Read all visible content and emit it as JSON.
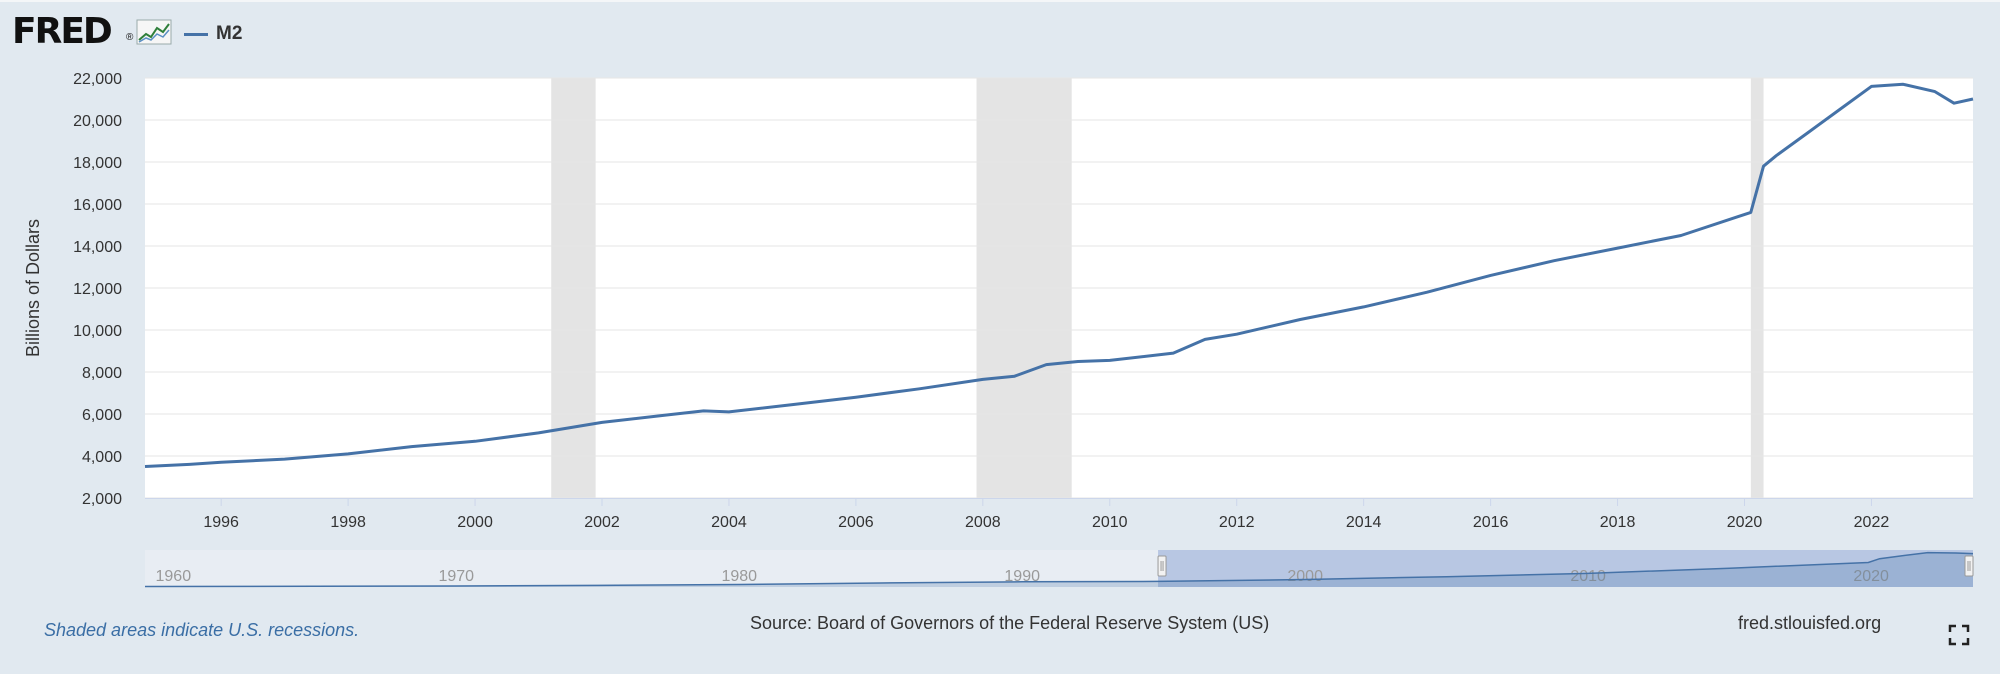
{
  "header": {
    "logo_text": "FRED",
    "logo_reg": "®",
    "legend_label": "M2",
    "series_color": "#4572a7"
  },
  "footer": {
    "recession_note": "Shaded areas indicate U.S. recessions.",
    "source": "Source: Board of Governors of the Federal Reserve System (US)",
    "site": "fred.stlouisfed.org",
    "fullscreen_icon": "fullscreen-icon"
  },
  "chart_data": {
    "type": "line",
    "title": "",
    "xlabel": "",
    "ylabel": "Billions of Dollars",
    "xlim": [
      1994.8,
      2023.6
    ],
    "ylim": [
      2000,
      22000
    ],
    "y_ticks": [
      2000,
      4000,
      6000,
      8000,
      10000,
      12000,
      14000,
      16000,
      18000,
      20000,
      22000
    ],
    "y_tick_labels": [
      "2,000",
      "4,000",
      "6,000",
      "8,000",
      "10,000",
      "12,000",
      "14,000",
      "16,000",
      "18,000",
      "20,000",
      "22,000"
    ],
    "x_ticks": [
      1996,
      1998,
      2000,
      2002,
      2004,
      2006,
      2008,
      2010,
      2012,
      2014,
      2016,
      2018,
      2020,
      2022
    ],
    "x_tick_labels": [
      "1996",
      "1998",
      "2000",
      "2002",
      "2004",
      "2006",
      "2008",
      "2010",
      "2012",
      "2014",
      "2016",
      "2018",
      "2020",
      "2022"
    ],
    "grid": true,
    "legend": "top-left",
    "recessions": [
      [
        2001.2,
        2001.9
      ],
      [
        2007.9,
        2009.4
      ],
      [
        2020.1,
        2020.3
      ]
    ],
    "series": [
      {
        "name": "M2",
        "x": [
          1994.8,
          1995.5,
          1996.0,
          1997.0,
          1998.0,
          1999.0,
          2000.0,
          2001.0,
          2001.5,
          2002.0,
          2003.0,
          2003.6,
          2004.0,
          2005.0,
          2006.0,
          2007.0,
          2008.0,
          2008.5,
          2009.0,
          2009.5,
          2010.0,
          2011.0,
          2011.5,
          2012.0,
          2013.0,
          2014.0,
          2015.0,
          2016.0,
          2017.0,
          2018.0,
          2019.0,
          2019.9,
          2020.1,
          2020.3,
          2020.5,
          2021.0,
          2021.5,
          2022.0,
          2022.5,
          2023.0,
          2023.3,
          2023.6
        ],
        "y": [
          3500,
          3600,
          3700,
          3850,
          4100,
          4450,
          4700,
          5100,
          5350,
          5600,
          5950,
          6150,
          6100,
          6450,
          6800,
          7200,
          7650,
          7800,
          8350,
          8500,
          8550,
          8900,
          9550,
          9800,
          10500,
          11100,
          11800,
          12600,
          13300,
          13900,
          14500,
          15400,
          15600,
          17800,
          18300,
          19400,
          20500,
          21600,
          21700,
          21350,
          20800,
          21000
        ]
      }
    ],
    "navigator": {
      "x_range": [
        1959,
        2023.6
      ],
      "tick_labels": [
        "1960",
        "1970",
        "1980",
        "1990",
        "2000",
        "2010",
        "2020"
      ],
      "tick_values": [
        1960,
        1970,
        1980,
        1990,
        2000,
        2010,
        2020
      ],
      "selected_range": [
        1994.8,
        2023.6
      ],
      "series_x": [
        1959,
        1965,
        1970,
        1975,
        1980,
        1985,
        1990,
        1994.8,
        2000,
        2005,
        2010,
        2015,
        2019.9,
        2020.3,
        2021,
        2022,
        2023,
        2023.6
      ],
      "series_y": [
        300,
        450,
        620,
        1000,
        1600,
        2500,
        3300,
        3500,
        4700,
        6450,
        8550,
        11800,
        15400,
        17800,
        19400,
        21600,
        21350,
        21000
      ]
    }
  }
}
